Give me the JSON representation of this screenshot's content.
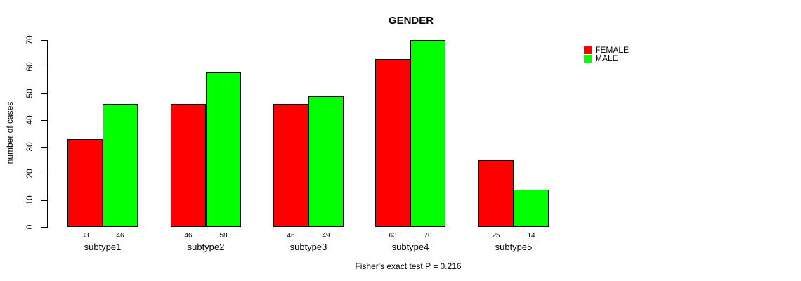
{
  "chart_data": {
    "type": "bar",
    "title": "GENDER",
    "xlabel": "",
    "ylabel": "number of cases",
    "annotation": "Fisher's exact test P = 0.216",
    "categories": [
      "subtype1",
      "subtype2",
      "subtype3",
      "subtype4",
      "subtype5"
    ],
    "series": [
      {
        "name": "FEMALE",
        "color": "#ff0000",
        "values": [
          33,
          46,
          46,
          63,
          25
        ]
      },
      {
        "name": "MALE",
        "color": "#00ff00",
        "values": [
          46,
          58,
          49,
          70,
          14
        ]
      }
    ],
    "bar_value_labels_shown": true,
    "ylim": [
      0,
      70
    ],
    "yticks": [
      0,
      10,
      20,
      30,
      40,
      50,
      60,
      70
    ],
    "grid": false,
    "legend_position": "top-right-inside",
    "axis_color": "#000000",
    "background_color": "#ffffff"
  }
}
